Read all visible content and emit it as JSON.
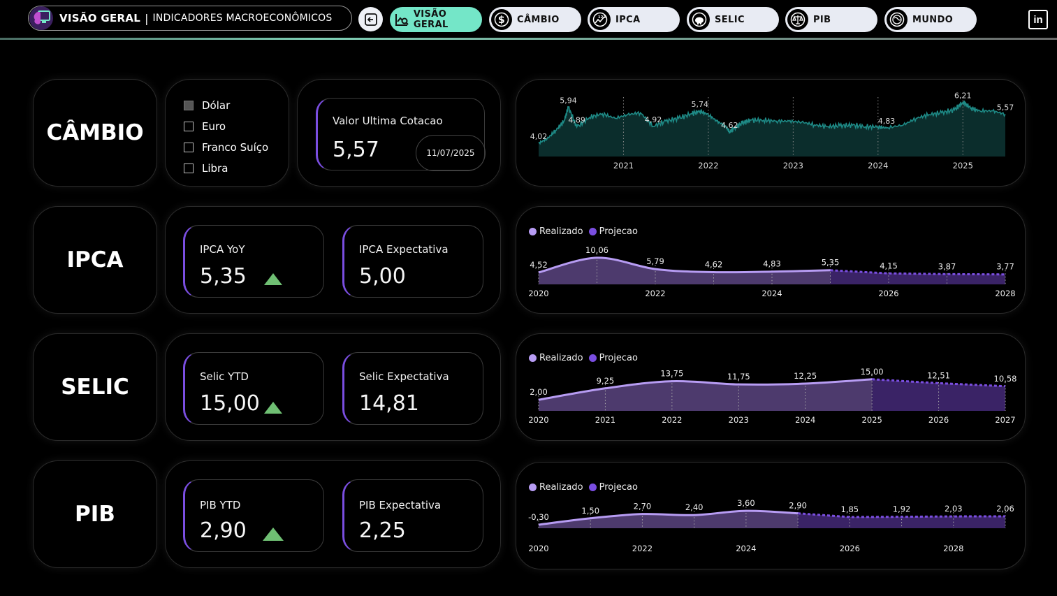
{
  "header": {
    "title_bold": "VISÃO GERAL",
    "separator": "|",
    "title_sub": "INDICADORES MACROECONÔMICOS",
    "nav": [
      {
        "label": "VISÃO GERAL",
        "icon": "chart-search-icon",
        "active": true
      },
      {
        "label": "CÂMBIO",
        "icon": "dollar-icon",
        "active": false
      },
      {
        "label": "IPCA",
        "icon": "index-chart-icon",
        "active": false
      },
      {
        "label": "SELIC",
        "icon": "piggy-bank-icon",
        "active": false
      },
      {
        "label": "PIB",
        "icon": "scale-icon",
        "active": false
      },
      {
        "label": "MUNDO",
        "icon": "globe-icon",
        "active": false
      }
    ],
    "linkedin_label": "in"
  },
  "cambio": {
    "label": "CÂMBIO",
    "currencies": [
      {
        "name": "Dólar",
        "checked": true
      },
      {
        "name": "Euro",
        "checked": false
      },
      {
        "name": "Franco Suíço",
        "checked": false
      },
      {
        "name": "Libra",
        "checked": false
      }
    ],
    "kpi_label": "Valor Ultima Cotacao",
    "kpi_value": "5,57",
    "kpi_date": "11/07/2025"
  },
  "ipca": {
    "label": "IPCA",
    "kpi1_label": "IPCA YoY",
    "kpi1_value": "5,35",
    "kpi2_label": "IPCA Expectativa",
    "kpi2_value": "5,00"
  },
  "selic": {
    "label": "SELIC",
    "kpi1_label": "Selic YTD",
    "kpi1_value": "15,00",
    "kpi2_label": "Selic Expectativa",
    "kpi2_value": "14,81"
  },
  "pib": {
    "label": "PIB",
    "kpi1_label": "PIB YTD",
    "kpi1_value": "2,90",
    "kpi2_label": "PIB Expectativa",
    "kpi2_value": "2,25"
  },
  "legend": {
    "realizado": "Realizado",
    "projecao": "Projecao"
  },
  "colors": {
    "accent": "#74e6c8",
    "realizado": "#b79cf3",
    "projecao": "#7a4ee0",
    "cambio_line": "#1e8a86",
    "kpi_border": "#7a4ee0",
    "up_arrow": "#6fbf73"
  },
  "chart_data": [
    {
      "type": "area",
      "id": "cambio",
      "x": [
        2020.0,
        2020.1,
        2020.2,
        2020.3,
        2020.35,
        2020.45,
        2020.6,
        2020.75,
        2020.9,
        2021.05,
        2021.2,
        2021.35,
        2021.5,
        2021.65,
        2021.8,
        2021.9,
        2022.0,
        2022.1,
        2022.2,
        2022.25,
        2022.3,
        2022.4,
        2022.5,
        2022.65,
        2022.8,
        2022.95,
        2023.1,
        2023.25,
        2023.4,
        2023.55,
        2023.7,
        2023.85,
        2024.0,
        2024.1,
        2024.3,
        2024.45,
        2024.6,
        2024.75,
        2024.9,
        2025.0,
        2025.1,
        2025.2,
        2025.35,
        2025.5
      ],
      "values": [
        4.02,
        4.25,
        4.7,
        5.2,
        5.94,
        4.89,
        5.4,
        5.6,
        5.35,
        5.55,
        5.65,
        4.92,
        5.2,
        5.35,
        5.6,
        5.74,
        5.55,
        5.2,
        4.95,
        4.62,
        4.8,
        5.1,
        5.25,
        5.25,
        5.2,
        5.2,
        5.15,
        5.0,
        4.9,
        4.95,
        4.98,
        4.9,
        4.9,
        4.83,
        5.0,
        5.35,
        5.55,
        5.65,
        5.8,
        6.21,
        5.9,
        5.75,
        5.75,
        5.57
      ],
      "labels": [
        {
          "x": 2020.0,
          "y": 4.02,
          "text": "4,02"
        },
        {
          "x": 2020.35,
          "y": 5.94,
          "text": "5,94"
        },
        {
          "x": 2020.45,
          "y": 4.89,
          "text": "4,89"
        },
        {
          "x": 2021.35,
          "y": 4.92,
          "text": "4,92"
        },
        {
          "x": 2021.9,
          "y": 5.74,
          "text": "5,74"
        },
        {
          "x": 2022.25,
          "y": 4.62,
          "text": "4,62"
        },
        {
          "x": 2024.1,
          "y": 4.83,
          "text": "4,83"
        },
        {
          "x": 2025.0,
          "y": 6.21,
          "text": "6,21"
        },
        {
          "x": 2025.5,
          "y": 5.57,
          "text": "5,57"
        }
      ],
      "ticks": [
        "2021",
        "2022",
        "2023",
        "2024",
        "2025"
      ],
      "tick_values": [
        2021,
        2022,
        2023,
        2024,
        2025
      ],
      "xlim": [
        2020.0,
        2025.5
      ],
      "ylim": [
        3.3,
        6.6
      ]
    },
    {
      "type": "area",
      "id": "ipca",
      "x": [
        2020,
        2021,
        2022,
        2023,
        2024,
        2025,
        2026,
        2027,
        2028
      ],
      "values": [
        4.52,
        10.06,
        5.79,
        4.62,
        4.83,
        5.35,
        4.15,
        3.87,
        3.77
      ],
      "labels": [
        "4,52",
        "10,06",
        "5,79",
        "4,62",
        "4,83",
        "5,35",
        "4,15",
        "3,87",
        "3,77"
      ],
      "realizado_until": 2025,
      "ticks": [
        "2020",
        "2022",
        "2024",
        "2026",
        "2028"
      ],
      "tick_values": [
        2020,
        2022,
        2024,
        2026,
        2028
      ],
      "ylim": [
        0,
        14
      ]
    },
    {
      "type": "area",
      "id": "selic",
      "x": [
        2020,
        2021,
        2022,
        2023,
        2024,
        2025,
        2026,
        2027
      ],
      "values": [
        2.0,
        9.25,
        13.75,
        11.75,
        12.25,
        15.0,
        12.51,
        10.58
      ],
      "labels": [
        "2,00",
        "9,25",
        "13,75",
        "11,75",
        "12,25",
        "15,00",
        "12,51",
        "10,58"
      ],
      "realizado_until": 2025,
      "ticks": [
        "2020",
        "2021",
        "2022",
        "2023",
        "2024",
        "2025",
        "2026",
        "2027"
      ],
      "tick_values": [
        2020,
        2021,
        2022,
        2023,
        2024,
        2025,
        2026,
        2027
      ],
      "ylim": [
        -5,
        18
      ]
    },
    {
      "type": "area",
      "id": "pib",
      "x": [
        2020,
        2021,
        2022,
        2023,
        2024,
        2025,
        2026,
        2027,
        2028,
        2029
      ],
      "values": [
        -0.3,
        1.5,
        2.7,
        2.4,
        3.6,
        2.9,
        1.85,
        1.92,
        2.03,
        2.06
      ],
      "labels": [
        "-0,30",
        "1,50",
        "2,70",
        "2,40",
        "3,60",
        "2,90",
        "1,85",
        "1,92",
        "2,03",
        "2,06"
      ],
      "realizado_until": 2025,
      "ticks": [
        "2020",
        "2022",
        "2024",
        "2026",
        "2028"
      ],
      "tick_values": [
        2020,
        2022,
        2024,
        2026,
        2028
      ],
      "ylim": [
        -1.3,
        5
      ]
    }
  ]
}
